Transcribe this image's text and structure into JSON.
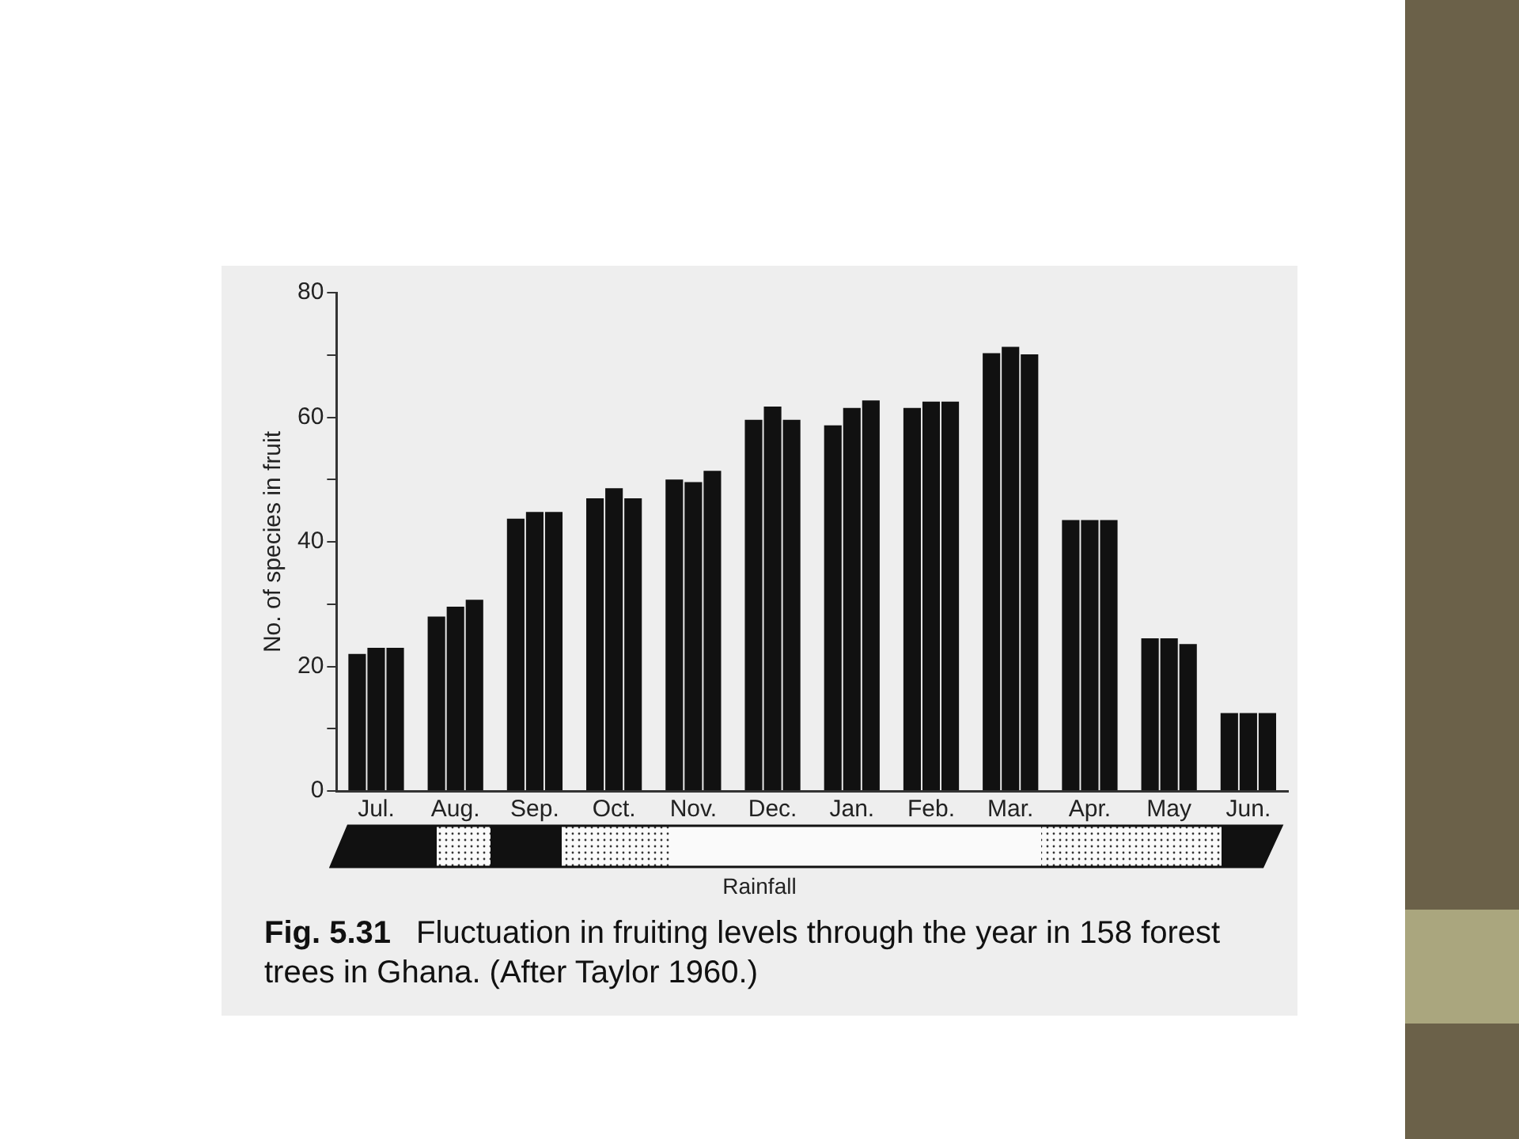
{
  "chart_data": {
    "type": "bar",
    "ylabel": "No. of species in fruit",
    "categories": [
      "Jul.",
      "Aug.",
      "Sep.",
      "Oct.",
      "Nov.",
      "Dec.",
      "Jan.",
      "Feb.",
      "Mar.",
      "Apr.",
      "May",
      "Jun."
    ],
    "series": [
      {
        "color": "#111111",
        "values": [
          22,
          28,
          43.7,
          47,
          50,
          59.6,
          58.7,
          61.5,
          70.3,
          43.5,
          24.5,
          12.5
        ]
      },
      {
        "color": "#111111",
        "values": [
          23,
          29.6,
          44.8,
          48.6,
          49.6,
          61.7,
          61.5,
          62.5,
          71.3,
          43.5,
          24.5,
          12.5
        ]
      },
      {
        "color": "#111111",
        "values": [
          23,
          30.7,
          44.8,
          47,
          51.4,
          59.6,
          62.7,
          62.5,
          70.1,
          43.5,
          23.6,
          12.5
        ]
      }
    ],
    "ylim": [
      0,
      80
    ],
    "yticks": [
      0,
      {
        "value": 10,
        "label": null
      },
      20,
      {
        "value": 30,
        "label": null
      },
      40,
      {
        "value": 50,
        "label": null
      },
      60,
      {
        "value": 70,
        "label": null
      },
      80
    ],
    "grid": false,
    "legend": false,
    "annotations": [
      "Rainfall",
      "Fig. 5.31",
      "Fluctuation in fruiting levels through the year in 158 forest trees in Ghana. (After Taylor 1960.)"
    ]
  }
}
